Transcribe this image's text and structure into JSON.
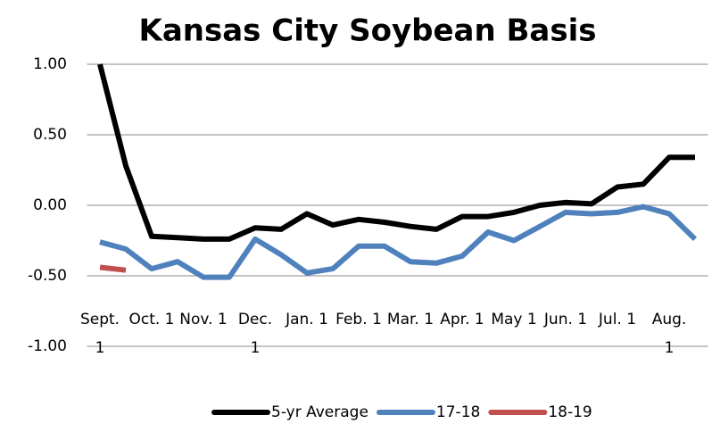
{
  "chart_data": {
    "type": "line",
    "title": "Kansas City Soybean Basis",
    "categories": [
      "Sept. 1",
      null,
      "Oct. 1",
      null,
      "Nov. 1",
      null,
      "Dec. 1",
      null,
      "Jan. 1",
      null,
      "Feb. 1",
      null,
      "Mar. 1",
      null,
      "Apr. 1",
      null,
      "May 1",
      null,
      "Jun. 1",
      null,
      "Jul. 1",
      null,
      "Aug. 1",
      null
    ],
    "series": [
      {
        "name": "5-yr Average",
        "color": "#000000",
        "values": [
          1.0,
          0.28,
          -0.22,
          -0.23,
          -0.24,
          -0.24,
          -0.16,
          -0.17,
          -0.06,
          -0.14,
          -0.1,
          -0.12,
          -0.15,
          -0.17,
          -0.08,
          -0.08,
          -0.05,
          0.0,
          0.02,
          0.01,
          0.13,
          0.15,
          0.34,
          0.34
        ]
      },
      {
        "name": "17-18",
        "color": "#4f81bd",
        "values": [
          -0.26,
          -0.31,
          -0.45,
          -0.4,
          -0.51,
          -0.51,
          -0.24,
          -0.35,
          -0.48,
          -0.45,
          -0.29,
          -0.29,
          -0.4,
          -0.41,
          -0.36,
          -0.19,
          -0.25,
          -0.15,
          -0.05,
          -0.06,
          -0.05,
          -0.01,
          -0.06,
          -0.24
        ]
      },
      {
        "name": "18-19",
        "color": "#c0504d",
        "values": [
          -0.44,
          -0.46,
          null,
          null,
          null,
          null,
          null,
          null,
          null,
          null,
          null,
          null,
          null,
          null,
          null,
          null,
          null,
          null,
          null,
          null,
          null,
          null,
          null,
          null
        ]
      }
    ],
    "ylim": [
      -1,
      1
    ],
    "yticks": [
      {
        "value": -1,
        "label": "-1.00"
      },
      {
        "value": -0.5,
        "label": "-0.50"
      },
      {
        "value": 0,
        "label": "0.00"
      },
      {
        "value": 0.5,
        "label": "0.50"
      },
      {
        "value": 1,
        "label": "1.00"
      }
    ],
    "grid": true,
    "legend": "bottom"
  }
}
